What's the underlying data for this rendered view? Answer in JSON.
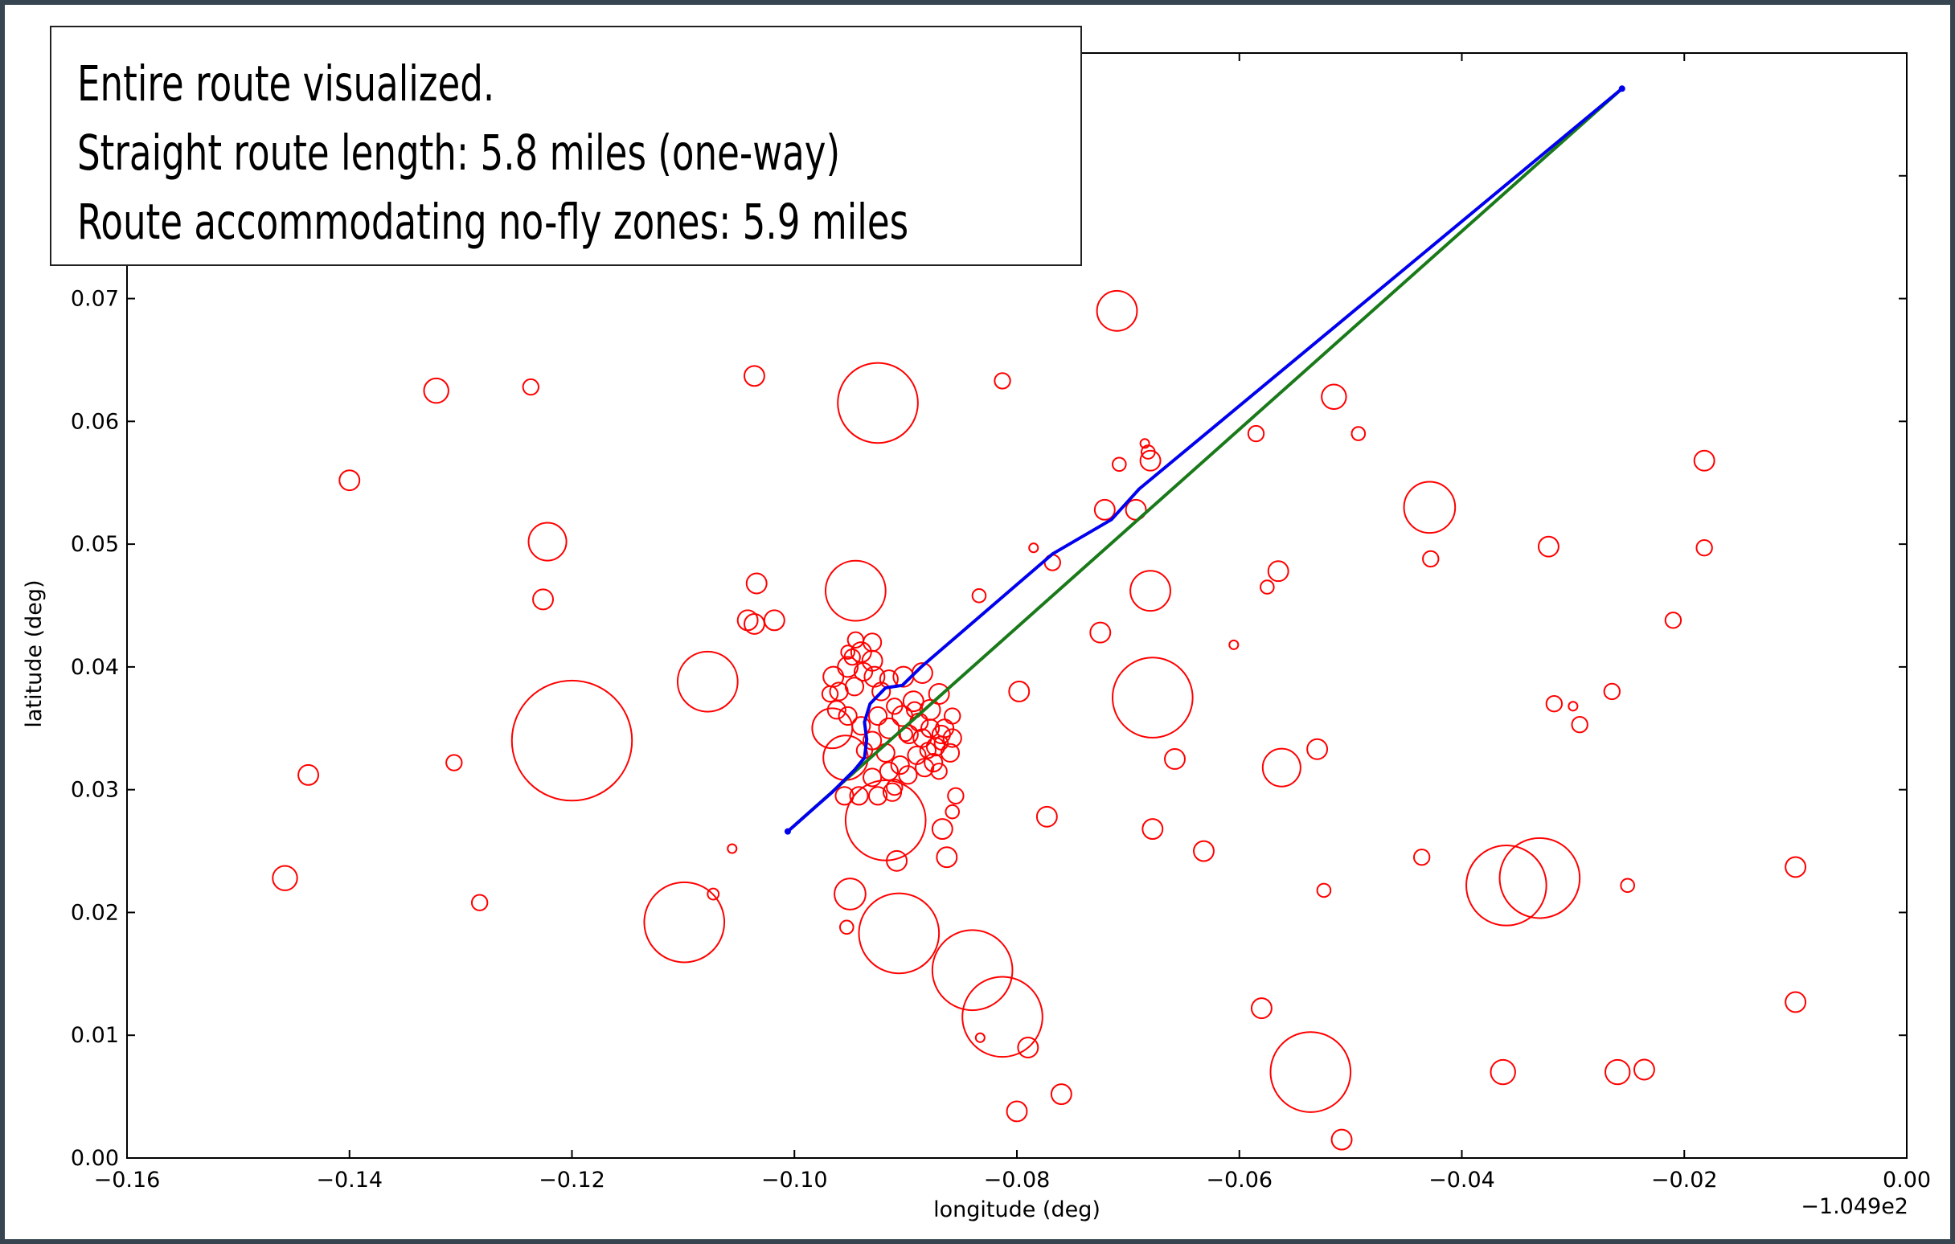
{
  "annotation": {
    "line1": "Entire route visualized.",
    "line2": "Straight route length:  5.8 miles (one-way)",
    "line3": "Route accommodating no-fly zones: 5.9 miles"
  },
  "chart_data": {
    "type": "scatter",
    "title": "",
    "xlabel": "longitude (deg)",
    "ylabel": "latitude (deg)",
    "x_offset_label": "−1.049e2",
    "xlim": [
      -0.16,
      0.0
    ],
    "ylim": [
      0.0,
      0.09
    ],
    "x_ticks": [
      -0.16,
      -0.14,
      -0.12,
      -0.1,
      -0.08,
      -0.06,
      -0.04,
      -0.02,
      0.0
    ],
    "x_tick_labels": [
      "−0.16",
      "−0.14",
      "−0.12",
      "−0.10",
      "−0.08",
      "−0.06",
      "−0.04",
      "−0.02",
      "0.00"
    ],
    "y_ticks": [
      0.0,
      0.01,
      0.02,
      0.03,
      0.04,
      0.05,
      0.06,
      0.07,
      0.08
    ],
    "y_tick_labels": [
      "0.00",
      "0.01",
      "0.02",
      "0.03",
      "0.04",
      "0.05",
      "0.06",
      "0.07",
      ""
    ],
    "grid": false,
    "colors": {
      "no_fly_zone": "#ff0000",
      "straight_route": "#1a7a1a",
      "avoidance_route": "#0000ee"
    },
    "routes": [
      {
        "style": "straight",
        "points": [
          [
            -0.1006,
            0.0266
          ],
          [
            -0.0256,
            0.0871
          ]
        ]
      },
      {
        "style": "avoidance",
        "points": [
          [
            -0.1006,
            0.0266
          ],
          [
            -0.0966,
            0.0298
          ],
          [
            -0.0946,
            0.0316
          ],
          [
            -0.0937,
            0.0326
          ],
          [
            -0.0935,
            0.0341
          ],
          [
            -0.0937,
            0.0355
          ],
          [
            -0.0932,
            0.037
          ],
          [
            -0.0918,
            0.0383
          ],
          [
            -0.0903,
            0.0385
          ],
          [
            -0.0886,
            0.04
          ],
          [
            -0.0768,
            0.0492
          ],
          [
            -0.0715,
            0.052
          ],
          [
            -0.069,
            0.0545
          ],
          [
            -0.0256,
            0.0871
          ]
        ]
      }
    ],
    "no_fly_zones": [
      [
        -0.12,
        0.034,
        0.0054
      ],
      [
        -0.0925,
        0.0615,
        0.0036
      ],
      [
        -0.0678,
        0.0375,
        0.0036
      ],
      [
        -0.0536,
        0.007,
        0.0036
      ],
      [
        -0.0813,
        0.0115,
        0.0036
      ],
      [
        -0.084,
        0.0153,
        0.0036
      ],
      [
        -0.1099,
        0.0192,
        0.0036
      ],
      [
        -0.0906,
        0.0183,
        0.0036
      ],
      [
        -0.0918,
        0.0275,
        0.0036
      ],
      [
        -0.036,
        0.0222,
        0.0036
      ],
      [
        -0.033,
        0.0228,
        0.0036
      ],
      [
        -0.1078,
        0.0388,
        0.0027
      ],
      [
        -0.0945,
        0.0462,
        0.0027
      ],
      [
        -0.0429,
        0.053,
        0.0023
      ],
      [
        -0.071,
        0.069,
        0.0018
      ],
      [
        -0.068,
        0.0462,
        0.0018
      ],
      [
        -0.1222,
        0.0502,
        0.0017
      ],
      [
        -0.0562,
        0.0318,
        0.0017
      ],
      [
        -0.0954,
        0.0326,
        0.002
      ],
      [
        -0.0966,
        0.035,
        0.0018
      ],
      [
        -0.095,
        0.0215,
        0.0014
      ],
      [
        -0.1458,
        0.0228,
        0.0011
      ],
      [
        -0.1437,
        0.0312,
        0.0009
      ],
      [
        -0.14,
        0.0552,
        0.0009
      ],
      [
        -0.1322,
        0.0625,
        0.0011
      ],
      [
        -0.1237,
        0.0628,
        0.0007
      ],
      [
        -0.1306,
        0.0322,
        0.0007
      ],
      [
        -0.1283,
        0.0208,
        0.0007
      ],
      [
        -0.1226,
        0.0455,
        0.0009
      ],
      [
        -0.1036,
        0.0637,
        0.0009
      ],
      [
        -0.1034,
        0.0468,
        0.0009
      ],
      [
        -0.1042,
        0.0438,
        0.0009
      ],
      [
        -0.1036,
        0.0435,
        0.0009
      ],
      [
        -0.1018,
        0.0438,
        0.0009
      ],
      [
        -0.1056,
        0.0252,
        0.0004
      ],
      [
        -0.1073,
        0.0215,
        0.0005
      ],
      [
        -0.0953,
        0.0188,
        0.0006
      ],
      [
        -0.0813,
        0.0633,
        0.0007
      ],
      [
        -0.0708,
        0.0565,
        0.0006
      ],
      [
        -0.0725,
        0.0428,
        0.0009
      ],
      [
        -0.0721,
        0.0528,
        0.0009
      ],
      [
        -0.0693,
        0.0528,
        0.0009
      ],
      [
        -0.068,
        0.0568,
        0.0009
      ],
      [
        -0.0682,
        0.0575,
        0.0006
      ],
      [
        -0.0685,
        0.0582,
        0.0004
      ],
      [
        -0.0768,
        0.0485,
        0.0007
      ],
      [
        -0.0785,
        0.0497,
        0.0004
      ],
      [
        -0.0834,
        0.0458,
        0.0006
      ],
      [
        -0.0798,
        0.038,
        0.0009
      ],
      [
        -0.0773,
        0.0278,
        0.0009
      ],
      [
        -0.0863,
        0.0245,
        0.0009
      ],
      [
        -0.0867,
        0.0268,
        0.0009
      ],
      [
        -0.0855,
        0.0295,
        0.0007
      ],
      [
        -0.0858,
        0.0282,
        0.0006
      ],
      [
        -0.0908,
        0.0242,
        0.0009
      ],
      [
        -0.0833,
        0.0098,
        0.0004
      ],
      [
        -0.079,
        0.009,
        0.0009
      ],
      [
        -0.08,
        0.0038,
        0.0009
      ],
      [
        -0.076,
        0.0052,
        0.0009
      ],
      [
        -0.0508,
        0.0015,
        0.0009
      ],
      [
        -0.058,
        0.0122,
        0.0009
      ],
      [
        -0.0658,
        0.0325,
        0.0009
      ],
      [
        -0.0678,
        0.0268,
        0.0009
      ],
      [
        -0.0632,
        0.025,
        0.0009
      ],
      [
        -0.0605,
        0.0418,
        0.0004
      ],
      [
        -0.0575,
        0.0465,
        0.0006
      ],
      [
        -0.0565,
        0.0478,
        0.0009
      ],
      [
        -0.0585,
        0.059,
        0.0007
      ],
      [
        -0.0515,
        0.062,
        0.0011
      ],
      [
        -0.0493,
        0.059,
        0.0006
      ],
      [
        -0.0428,
        0.0488,
        0.0007
      ],
      [
        -0.0436,
        0.0245,
        0.0007
      ],
      [
        -0.0524,
        0.0218,
        0.0006
      ],
      [
        -0.053,
        0.0333,
        0.0009
      ],
      [
        -0.0363,
        0.007,
        0.0011
      ],
      [
        -0.0322,
        0.0498,
        0.0009
      ],
      [
        -0.0317,
        0.037,
        0.0007
      ],
      [
        -0.03,
        0.0368,
        0.0004
      ],
      [
        -0.0294,
        0.0353,
        0.0007
      ],
      [
        -0.0265,
        0.038,
        0.0007
      ],
      [
        -0.0251,
        0.0222,
        0.0006
      ],
      [
        -0.021,
        0.0438,
        0.0007
      ],
      [
        -0.0182,
        0.0568,
        0.0009
      ],
      [
        -0.0182,
        0.0497,
        0.0007
      ],
      [
        -0.026,
        0.007,
        0.0011
      ],
      [
        -0.0236,
        0.0072,
        0.0009
      ],
      [
        -0.01,
        0.0237,
        0.0009
      ],
      [
        -0.01,
        0.0127,
        0.0009
      ],
      [
        -0.0965,
        0.0392,
        0.0009
      ],
      [
        -0.0952,
        0.04,
        0.0009
      ],
      [
        -0.094,
        0.0412,
        0.0009
      ],
      [
        -0.093,
        0.0405,
        0.0009
      ],
      [
        -0.0928,
        0.0392,
        0.0009
      ],
      [
        -0.0946,
        0.0384,
        0.0008
      ],
      [
        -0.096,
        0.038,
        0.0008
      ],
      [
        -0.0938,
        0.0396,
        0.0008
      ],
      [
        -0.0922,
        0.038,
        0.0008
      ],
      [
        -0.0915,
        0.039,
        0.0008
      ],
      [
        -0.093,
        0.042,
        0.0008
      ],
      [
        -0.0945,
        0.0422,
        0.0007
      ],
      [
        -0.0902,
        0.0392,
        0.0009
      ],
      [
        -0.0885,
        0.0395,
        0.0009
      ],
      [
        -0.087,
        0.0378,
        0.0009
      ],
      [
        -0.0878,
        0.0365,
        0.0009
      ],
      [
        -0.0893,
        0.0372,
        0.0009
      ],
      [
        -0.0903,
        0.036,
        0.0009
      ],
      [
        -0.0915,
        0.035,
        0.0009
      ],
      [
        -0.0925,
        0.036,
        0.0008
      ],
      [
        -0.0897,
        0.0345,
        0.0008
      ],
      [
        -0.0885,
        0.0342,
        0.0008
      ],
      [
        -0.0873,
        0.0335,
        0.0008
      ],
      [
        -0.0865,
        0.035,
        0.0008
      ],
      [
        -0.0858,
        0.0342,
        0.0008
      ],
      [
        -0.086,
        0.033,
        0.0008
      ],
      [
        -0.0875,
        0.0322,
        0.0008
      ],
      [
        -0.089,
        0.0328,
        0.0008
      ],
      [
        -0.0905,
        0.032,
        0.0008
      ],
      [
        -0.0918,
        0.033,
        0.0008
      ],
      [
        -0.093,
        0.034,
        0.0008
      ],
      [
        -0.0962,
        0.0365,
        0.0008
      ],
      [
        -0.0952,
        0.036,
        0.0008
      ],
      [
        -0.094,
        0.0352,
        0.0008
      ],
      [
        -0.0955,
        0.0295,
        0.0008
      ],
      [
        -0.0942,
        0.0295,
        0.0008
      ],
      [
        -0.0925,
        0.0295,
        0.0008
      ],
      [
        -0.0912,
        0.0298,
        0.0008
      ],
      [
        -0.093,
        0.031,
        0.0008
      ],
      [
        -0.0915,
        0.0315,
        0.0008
      ],
      [
        -0.0898,
        0.0312,
        0.0008
      ],
      [
        -0.0883,
        0.0318,
        0.0008
      ],
      [
        -0.087,
        0.0315,
        0.0007
      ],
      [
        -0.0888,
        0.0355,
        0.0008
      ],
      [
        -0.0878,
        0.035,
        0.0008
      ],
      [
        -0.0868,
        0.0345,
        0.0008
      ],
      [
        -0.0858,
        0.036,
        0.0007
      ],
      [
        -0.0868,
        0.0338,
        0.0006
      ],
      [
        -0.09,
        0.0345,
        0.0006
      ],
      [
        -0.091,
        0.0368,
        0.0007
      ],
      [
        -0.0892,
        0.0365,
        0.0007
      ],
      [
        -0.088,
        0.0332,
        0.0007
      ],
      [
        -0.091,
        0.0302,
        0.0007
      ],
      [
        -0.0937,
        0.0332,
        0.0007
      ],
      [
        -0.0968,
        0.0378,
        0.0007
      ],
      [
        -0.0948,
        0.0408,
        0.0007
      ],
      [
        -0.0952,
        0.0412,
        0.0006
      ]
    ]
  }
}
